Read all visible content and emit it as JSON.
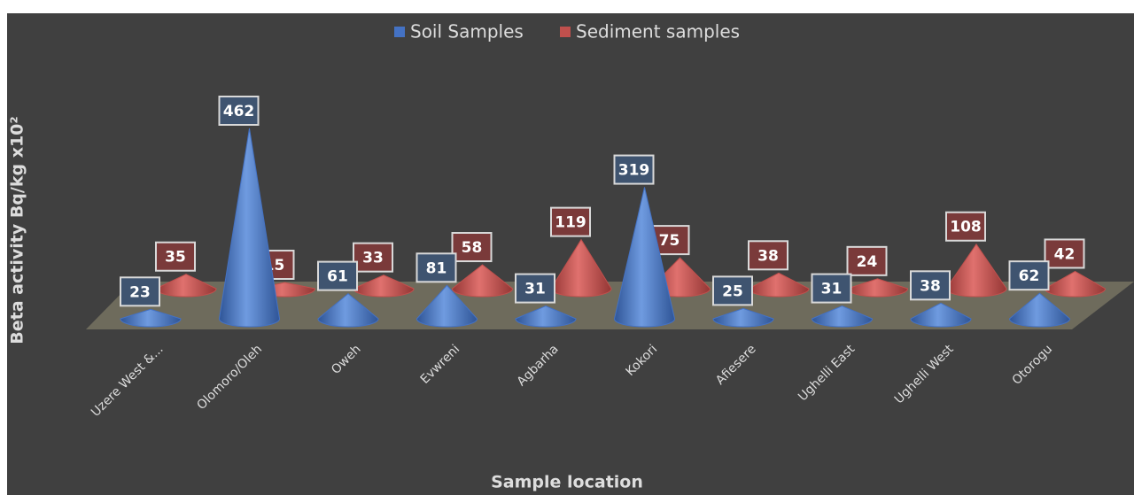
{
  "chart_data": {
    "type": "cone3d",
    "x_label": "Sample location",
    "y_label": "Beta activity Bq/kg x10²",
    "categories": [
      "Uzere West &...",
      "Olomoro/Oleh",
      "Oweh",
      "Evwreni",
      "Agbarha",
      "Kokori",
      "Afiesere",
      "Ughelli East",
      "Ughelli West",
      "Otorogu"
    ],
    "series": [
      {
        "name": "Soil Samples",
        "color": "#4472c4",
        "values": [
          23,
          462,
          61,
          81,
          31,
          319,
          25,
          31,
          38,
          62
        ]
      },
      {
        "name": "Sediment samples",
        "color": "#c0504d",
        "values": [
          35,
          15,
          33,
          58,
          119,
          75,
          38,
          24,
          108,
          42
        ]
      }
    ],
    "legend": "top"
  }
}
